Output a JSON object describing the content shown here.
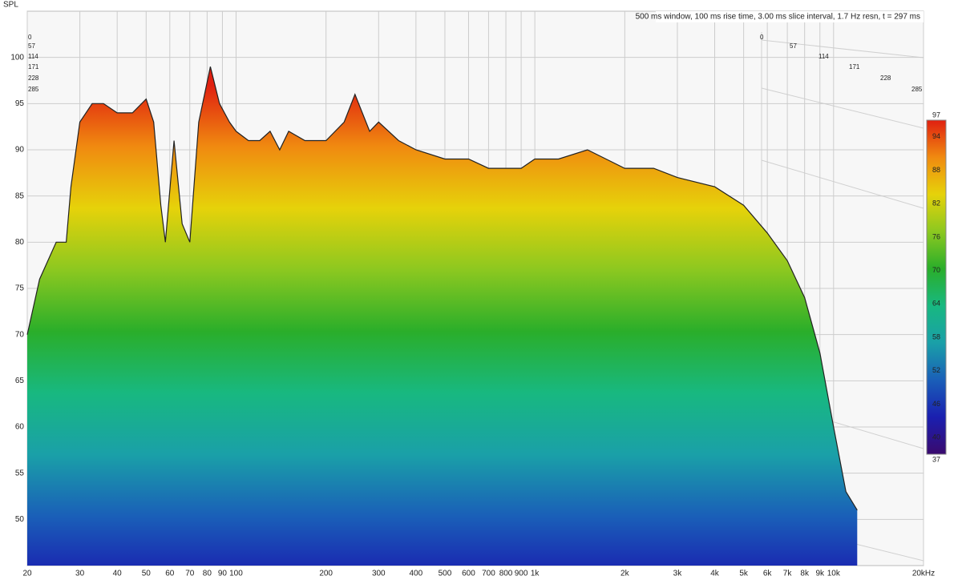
{
  "chart_data": {
    "type": "waterfall",
    "title": "500 ms window, 100 ms rise time, 3.00 ms slice interval, 1.7 Hz resn, t = 297 ms",
    "y_label": "SPL",
    "x": [
      20,
      22,
      25,
      27,
      28,
      30,
      33,
      36,
      40,
      45,
      50,
      53,
      56,
      58,
      62,
      66,
      70,
      75,
      82,
      88,
      95,
      100,
      110,
      120,
      130,
      140,
      150,
      170,
      200,
      230,
      250,
      280,
      300,
      350,
      400,
      500,
      600,
      700,
      800,
      900,
      1000,
      1200,
      1500,
      2000,
      2500,
      3000,
      4000,
      5000,
      6000,
      7000,
      8000,
      9000,
      10000,
      11000,
      12000
    ],
    "values": [
      70,
      76,
      80,
      80,
      86,
      93,
      95,
      95,
      94,
      94,
      95.5,
      93,
      84,
      80,
      91,
      82,
      80,
      93,
      99,
      95,
      93,
      92,
      91,
      91,
      92,
      90,
      92,
      91,
      91,
      93,
      96,
      92,
      93,
      91,
      90,
      89,
      89,
      88,
      88,
      88,
      89,
      89,
      90,
      88,
      88,
      87,
      86,
      84,
      81,
      78,
      74,
      68,
      60,
      53,
      51
    ],
    "xlim": [
      20,
      20000
    ],
    "ylim": [
      45,
      105
    ],
    "log_x": true,
    "grid": true,
    "xticks": [
      20,
      30,
      40,
      50,
      60,
      70,
      80,
      90,
      100,
      200,
      300,
      400,
      500,
      600,
      700,
      800,
      900,
      {
        "value": 1000,
        "label": "1k"
      },
      {
        "value": 2000,
        "label": "2k"
      },
      {
        "value": 3000,
        "label": "3k"
      },
      {
        "value": 4000,
        "label": "4k"
      },
      {
        "value": 5000,
        "label": "5k"
      },
      {
        "value": 6000,
        "label": "6k"
      },
      {
        "value": 7000,
        "label": "7k"
      },
      {
        "value": 8000,
        "label": "8k"
      },
      {
        "value": 9000,
        "label": "9k"
      },
      {
        "value": 10000,
        "label": "10k"
      },
      {
        "value": 20000,
        "label": "20kHz"
      }
    ],
    "yticks": [
      50,
      55,
      60,
      65,
      70,
      75,
      80,
      85,
      90,
      95,
      100
    ],
    "time_ticks": [
      0,
      57,
      114,
      171,
      228,
      285
    ],
    "colorbar": {
      "zlim": [
        37,
        97
      ],
      "zticks": [
        97,
        94,
        88,
        82,
        76,
        70,
        64,
        58,
        52,
        46,
        40,
        37
      ],
      "colors": [
        "#3a0a6e",
        "#1a1fb0",
        "#1a5fb8",
        "#1aa0a8",
        "#18b880",
        "#2aae2a",
        "#8cc820",
        "#e6d20a",
        "#f08a10",
        "#e02010"
      ]
    }
  }
}
